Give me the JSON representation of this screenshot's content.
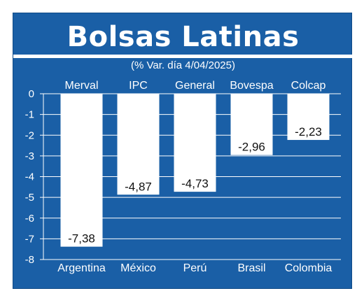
{
  "title": "Bolsas Latinas",
  "subtitle": "(% Var. día 4/04/2025)",
  "colors": {
    "background": "#1a5fa6",
    "bar": "#ffffff",
    "text": "#ffffff",
    "value_text": "#111111"
  },
  "chart_data": {
    "type": "bar",
    "title": "Bolsas Latinas",
    "subtitle": "(% Var. día 4/04/2025)",
    "index_names": [
      "Merval",
      "IPC",
      "General",
      "Bovespa",
      "Colcap"
    ],
    "categories": [
      "Argentina",
      "México",
      "Perú",
      "Brasil",
      "Colombia"
    ],
    "values": [
      -7.38,
      -4.87,
      -4.73,
      -2.96,
      -2.23
    ],
    "value_labels": [
      "-7,38",
      "-4,87",
      "-4,73",
      "-2,96",
      "-2,23"
    ],
    "yticks": [
      "0",
      "-1",
      "-2",
      "-3",
      "-4",
      "-5",
      "-6",
      "-7",
      "-8"
    ],
    "ylim": [
      -8,
      0
    ],
    "grid": true,
    "xlabel": "",
    "ylabel": ""
  }
}
